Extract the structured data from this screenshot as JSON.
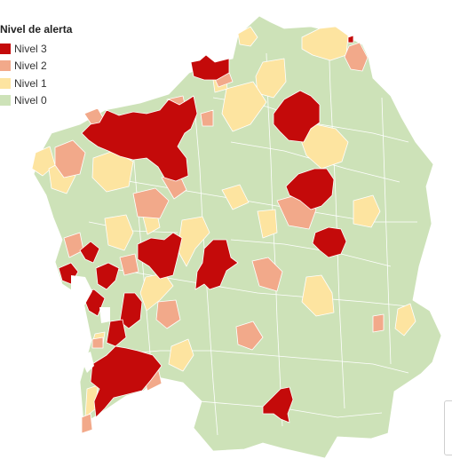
{
  "legend": {
    "title": "Nivel de alerta",
    "items": [
      {
        "label": "Nivel 3",
        "color": "#c40a0a"
      },
      {
        "label": "Nivel 2",
        "color": "#f2a98a"
      },
      {
        "label": "Nivel 1",
        "color": "#fde4a0"
      },
      {
        "label": "Nivel 0",
        "color": "#cde2b8"
      }
    ]
  }
}
